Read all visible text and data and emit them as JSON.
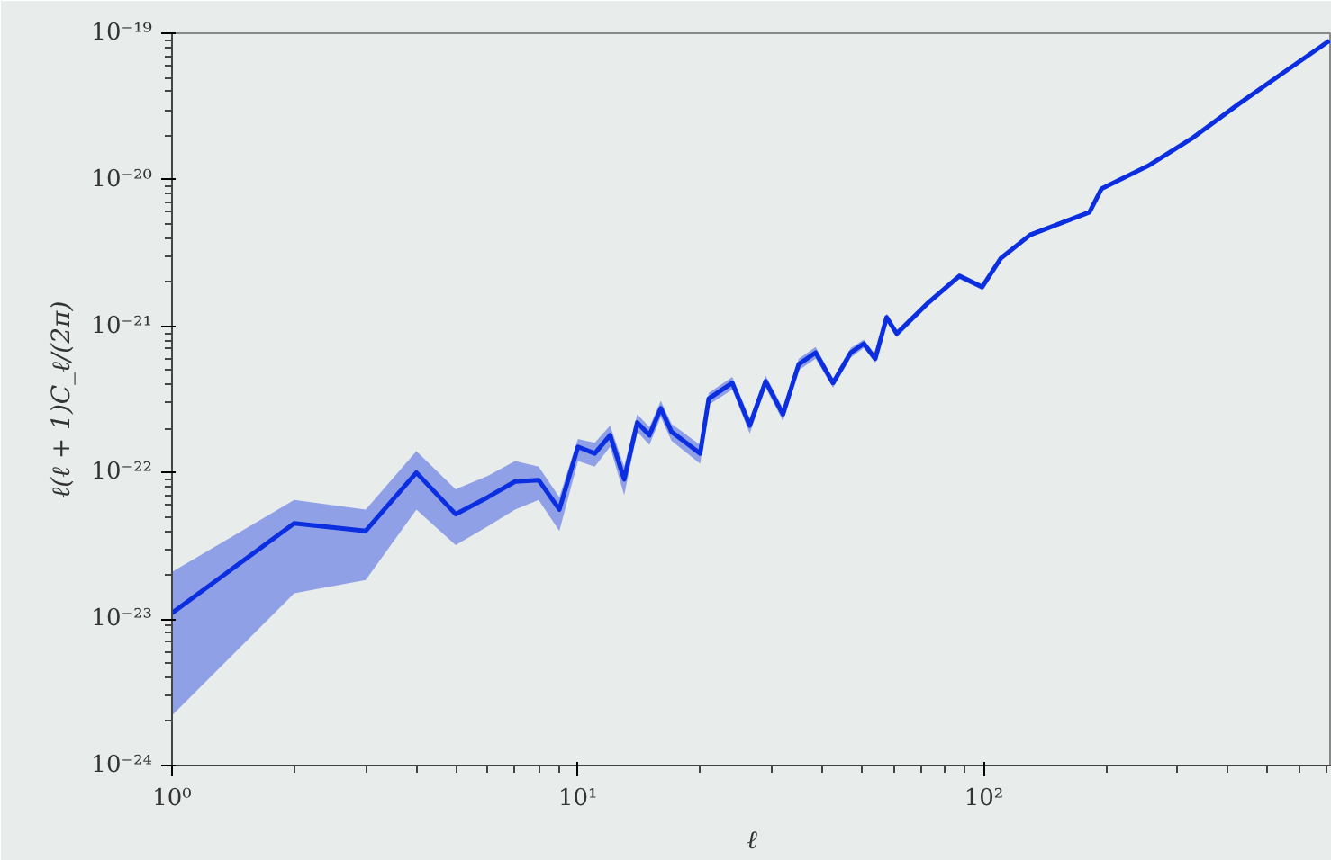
{
  "chart_data": {
    "type": "line",
    "xlabel": "ℓ",
    "ylabel": "ℓ(ℓ + 1)C_ℓ/(2π)",
    "log": "xy",
    "grid": false,
    "xlim": [
      1,
      720
    ],
    "ylim": [
      1e-24,
      1e-19
    ],
    "xticks": [
      {
        "value": 1,
        "label": "10⁰"
      },
      {
        "value": 10,
        "label": "10¹"
      },
      {
        "value": 100,
        "label": "10²"
      }
    ],
    "yticks": [
      {
        "value": 1e-24,
        "label": "10⁻²⁴"
      },
      {
        "value": 1e-23,
        "label": "10⁻²³"
      },
      {
        "value": 1e-22,
        "label": "10⁻²²"
      },
      {
        "value": 1e-21,
        "label": "10⁻²¹"
      },
      {
        "value": 1e-20,
        "label": "10⁻²⁰"
      },
      {
        "value": 1e-19,
        "label": "10⁻¹⁹"
      }
    ],
    "series": [
      {
        "color": "#0a2ee0",
        "x": [
          1,
          2,
          3,
          4,
          5,
          6,
          7,
          8,
          9,
          10,
          11,
          12,
          13,
          14,
          15,
          16,
          17,
          20,
          21,
          24,
          26.5,
          29,
          32,
          35,
          38.5,
          42.5,
          47,
          50.6,
          54,
          57.6,
          61,
          73,
          87,
          99,
          110,
          130,
          182,
          195,
          256,
          324,
          425,
          553,
          710
        ],
        "values": [
          1.1e-23,
          4.5e-23,
          4e-23,
          1e-22,
          5.2e-23,
          6.8e-23,
          8.7e-23,
          8.9e-23,
          5.6e-23,
          1.5e-22,
          1.35e-22,
          1.8e-22,
          9e-23,
          2.2e-22,
          1.8e-22,
          2.75e-22,
          1.9e-22,
          1.35e-22,
          3.2e-22,
          4.1e-22,
          2.1e-22,
          4.2e-22,
          2.5e-22,
          5.5e-22,
          6.6e-22,
          4.1e-22,
          6.6e-22,
          7.6e-22,
          6e-22,
          1.15e-21,
          8.9e-22,
          1.45e-21,
          2.2e-21,
          1.85e-21,
          2.9e-21,
          4.2e-21,
          6e-21,
          8.7e-21,
          1.26e-20,
          1.9e-20,
          3.3e-20,
          5.5e-20,
          8.9e-20
        ],
        "lower": [
          2.2e-24,
          1.5e-23,
          1.85e-23,
          5.6e-23,
          3.2e-23,
          4.3e-23,
          5.6e-23,
          6.5e-23,
          4e-23,
          1.2e-22,
          1.1e-22,
          1.5e-22,
          7e-23,
          1.9e-22,
          1.55e-22,
          2.4e-22,
          1.65e-22,
          1.15e-22,
          2.9e-22,
          3.7e-22,
          1.85e-22,
          3.8e-22,
          2.25e-22,
          5e-22,
          6e-22,
          3.8e-22,
          6.1e-22,
          7.1e-22,
          5.6e-22,
          1.08e-21,
          8.4e-22,
          1.38e-21,
          2.1e-21,
          1.77e-21,
          2.8e-21,
          4.05e-21,
          5.8e-21,
          8.45e-21,
          1.23e-20,
          1.86e-20,
          3.24e-20,
          5.42e-20,
          8.8e-20
        ],
        "upper": [
          2.1e-23,
          6.5e-23,
          5.6e-23,
          1.4e-22,
          7.7e-23,
          9.5e-23,
          1.2e-22,
          1.1e-22,
          6.8e-23,
          1.7e-22,
          1.6e-22,
          2.1e-22,
          1.1e-22,
          2.5e-22,
          2.05e-22,
          3.1e-22,
          2.15e-22,
          1.55e-22,
          3.5e-22,
          4.5e-22,
          2.35e-22,
          4.6e-22,
          2.75e-22,
          6e-22,
          7.2e-22,
          4.4e-22,
          7.1e-22,
          8.1e-22,
          6.4e-22,
          1.22e-21,
          9.4e-22,
          1.52e-21,
          2.3e-21,
          1.93e-21,
          3e-21,
          4.35e-21,
          6.2e-21,
          8.95e-21,
          1.29e-20,
          1.94e-20,
          3.36e-20,
          5.58e-20,
          9e-20
        ]
      }
    ]
  }
}
